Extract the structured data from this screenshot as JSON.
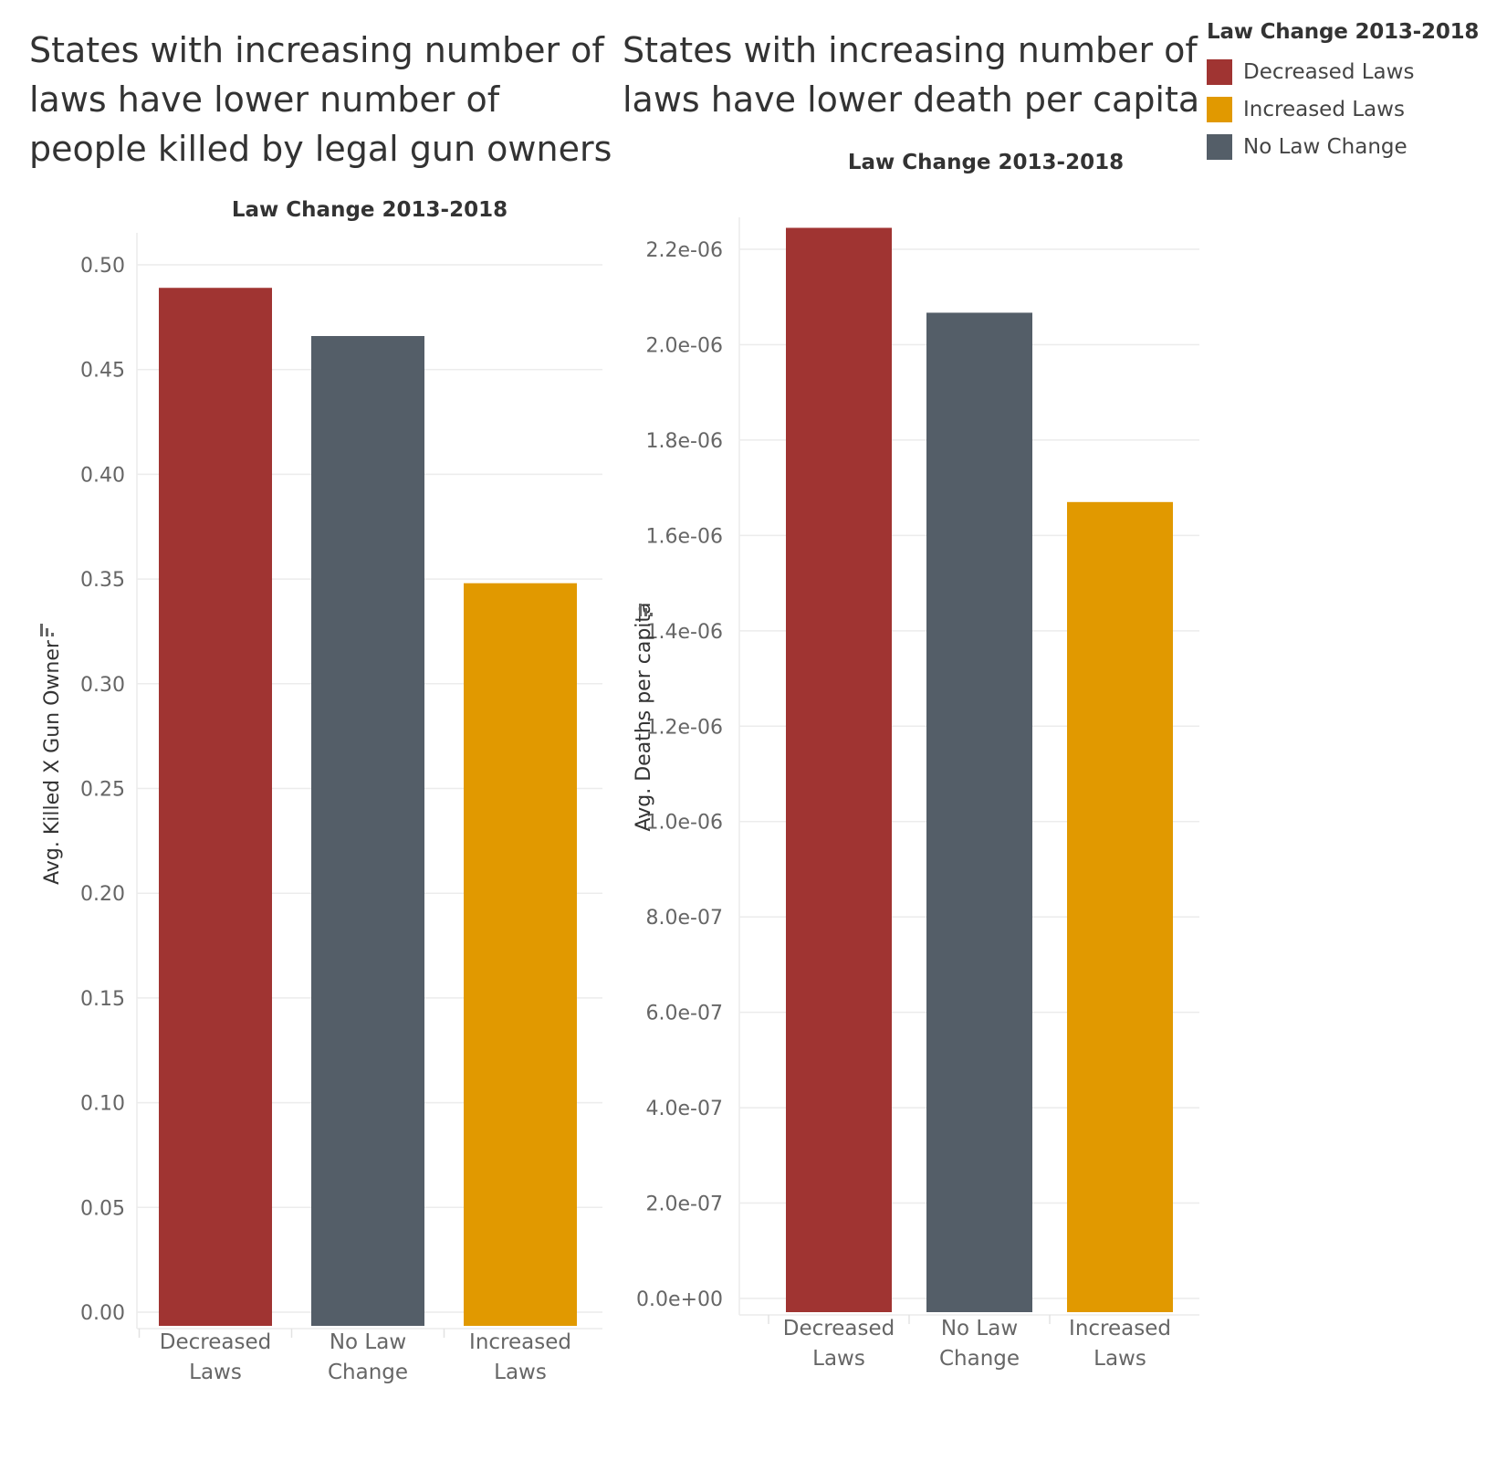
{
  "legend": {
    "title": "Law Change 2013-2018",
    "items": [
      {
        "label": "Decreased Laws",
        "color": "#A03432"
      },
      {
        "label": "Increased Laws",
        "color": "#E19900"
      },
      {
        "label": "No Law Change",
        "color": "#545E68"
      }
    ]
  },
  "chart_data": [
    {
      "type": "bar",
      "title": "States with increasing number of laws have lower number of people killed by legal gun owners",
      "header": "Law Change 2013-2018",
      "categories": [
        [
          "Decreased",
          "Laws"
        ],
        [
          "No Law",
          "Change"
        ],
        [
          "Increased",
          "Laws"
        ]
      ],
      "values": [
        0.489,
        0.466,
        0.348
      ],
      "colors": [
        "#A03432",
        "#545E68",
        "#E19900"
      ],
      "ylabel": "Avg. Killed X Gun Owner",
      "ylim": [
        0,
        0.5
      ],
      "yticks": [
        "0.00",
        "0.05",
        "0.10",
        "0.15",
        "0.20",
        "0.25",
        "0.30",
        "0.35",
        "0.40",
        "0.45",
        "0.50"
      ],
      "grid": true
    },
    {
      "type": "bar",
      "title": "States with increasing number of laws have lower death per capita",
      "header": "Law Change 2013-2018",
      "categories": [
        [
          "Decreased",
          "Laws"
        ],
        [
          "No Law",
          "Change"
        ],
        [
          "Increased",
          "Laws"
        ]
      ],
      "values": [
        2.245e-06,
        2.067e-06,
        1.67e-06
      ],
      "colors": [
        "#A03432",
        "#545E68",
        "#E19900"
      ],
      "ylabel": "Avg. Deaths per capita",
      "ylim": [
        0,
        2.2e-06
      ],
      "yticks": [
        "0.0e+00",
        "2.0e-07",
        "4.0e-07",
        "6.0e-07",
        "8.0e-07",
        "1.0e-06",
        "1.2e-06",
        "1.4e-06",
        "1.6e-06",
        "1.8e-06",
        "2.0e-06",
        "2.2e-06"
      ],
      "grid": true
    }
  ]
}
